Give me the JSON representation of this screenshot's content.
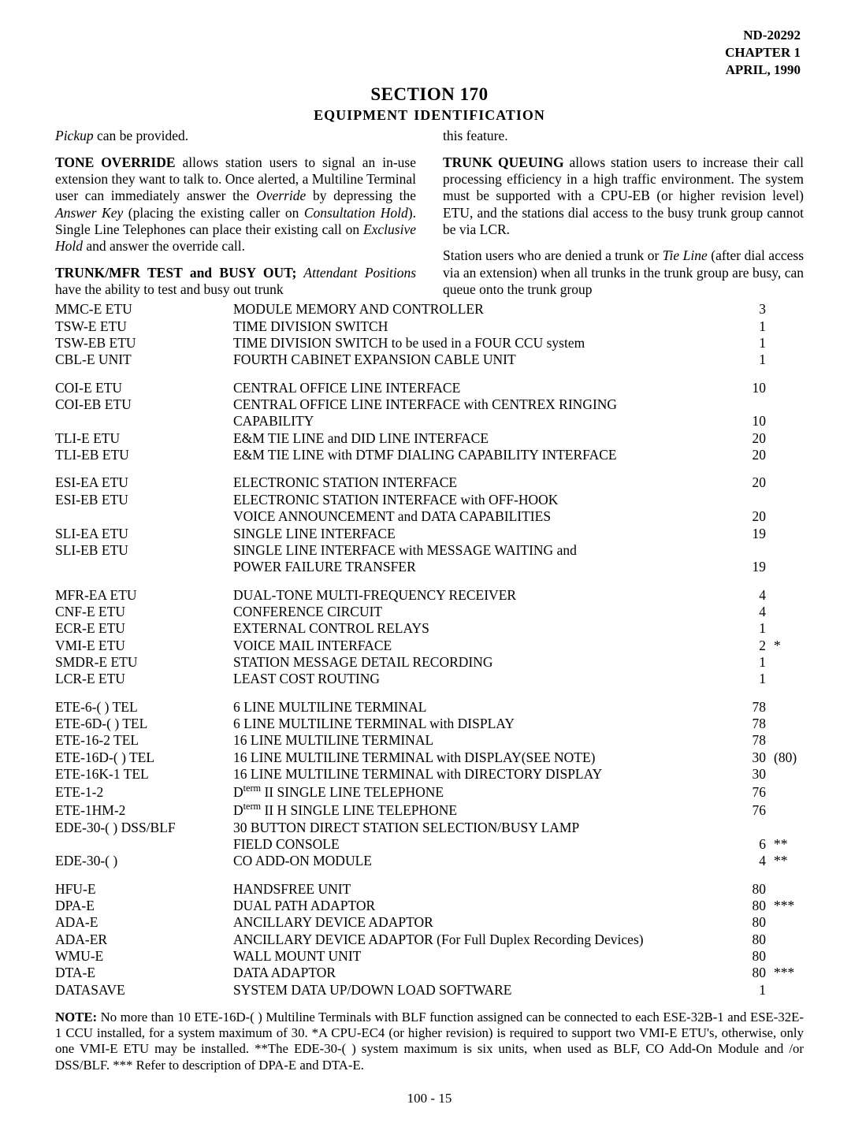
{
  "header": {
    "doc_no": "ND-20292",
    "chapter": "CHAPTER 1",
    "date": "APRIL, 1990"
  },
  "section": {
    "title": "SECTION 170",
    "subtitle": "EQUIPMENT IDENTIFICATION"
  },
  "left_col": {
    "p1_pre_i": "Pickup",
    "p1_rest": " can be provided.",
    "p2": "TONE OVERRIDE allows station users to signal an in-use extension they want to talk to. Once alerted, a Multiline Terminal user can immediately answer the Override by depressing the Answer Key (placing the existing caller on Consultation Hold). Single Line Telephones can place their existing call on Exclusive Hold and answer the override call.",
    "p3_lead": "TRUNK/MFR TEST and BUSY OUT;",
    "p3_i": " Attendant Positions",
    "p3_rest": " have the ability to test and busy out trunk"
  },
  "right_col": {
    "p1": "this feature.",
    "p2": "TRUNK QUEUING allows station users to increase their call processing efficiency in a high traffic environment. The system must be supported with a CPU-EB (or higher revision level) ETU, and the stations dial access to the busy trunk group cannot be via LCR.",
    "p3": "Station users who are denied a trunk or Tie Line (after dial access via an extension) when all trunks in the trunk group are busy, can queue onto the trunk group"
  },
  "equipment_groups": [
    [
      {
        "label": "MMC-E ETU",
        "desc": "MODULE MEMORY AND CONTROLLER",
        "qty": "3",
        "ast": ""
      },
      {
        "label": "TSW-E ETU",
        "desc": "TIME DIVISION SWITCH",
        "qty": "1",
        "ast": ""
      },
      {
        "label": "TSW-EB ETU",
        "desc": "TIME DIVISION SWITCH to be used in a FOUR CCU system",
        "qty": "1",
        "ast": ""
      },
      {
        "label": "CBL-E UNIT",
        "desc": "FOURTH CABINET EXPANSION CABLE UNIT",
        "qty": "1",
        "ast": ""
      }
    ],
    [
      {
        "label": "COI-E ETU",
        "desc": "CENTRAL OFFICE LINE INTERFACE",
        "qty": "10",
        "ast": ""
      },
      {
        "label": "COI-EB ETU",
        "desc": "CENTRAL OFFICE LINE INTERFACE with CENTREX RINGING",
        "qty": "",
        "ast": ""
      },
      {
        "label": "",
        "desc": "CAPABILITY",
        "qty": "10",
        "ast": ""
      },
      {
        "label": "TLI-E ETU",
        "desc": "E&M TIE LINE and DID LINE INTERFACE",
        "qty": "20",
        "ast": ""
      },
      {
        "label": "TLI-EB ETU",
        "desc": "E&M TIE LINE with DTMF DIALING CAPABILITY INTERFACE",
        "qty": "20",
        "ast": ""
      }
    ],
    [
      {
        "label": "ESI-EA ETU",
        "desc": "ELECTRONIC STATION INTERFACE",
        "qty": "20",
        "ast": ""
      },
      {
        "label": "ESI-EB ETU",
        "desc": "ELECTRONIC STATION INTERFACE with OFF-HOOK",
        "qty": "",
        "ast": ""
      },
      {
        "label": "",
        "desc": "VOICE ANNOUNCEMENT and DATA CAPABILITIES",
        "qty": "20",
        "ast": ""
      },
      {
        "label": "SLI-EA ETU",
        "desc": "SINGLE LINE INTERFACE",
        "qty": "19",
        "ast": ""
      },
      {
        "label": "SLI-EB ETU",
        "desc": "SINGLE LINE INTERFACE with MESSAGE WAITING and",
        "qty": "",
        "ast": ""
      },
      {
        "label": "",
        "desc": "POWER FAILURE TRANSFER",
        "qty": "19",
        "ast": ""
      }
    ],
    [
      {
        "label": "MFR-EA ETU",
        "desc": "DUAL-TONE MULTI-FREQUENCY RECEIVER",
        "qty": "4",
        "ast": ""
      },
      {
        "label": "CNF-E ETU",
        "desc": "CONFERENCE CIRCUIT",
        "qty": "4",
        "ast": ""
      },
      {
        "label": "ECR-E ETU",
        "desc": "EXTERNAL CONTROL RELAYS",
        "qty": "1",
        "ast": ""
      },
      {
        "label": "VMI-E ETU",
        "desc": "VOICE MAIL INTERFACE",
        "qty": "2",
        "ast": "*"
      },
      {
        "label": "SMDR-E ETU",
        "desc": "STATION MESSAGE DETAIL RECORDING",
        "qty": "1",
        "ast": ""
      },
      {
        "label": "LCR-E ETU",
        "desc": "LEAST COST ROUTING",
        "qty": "1",
        "ast": ""
      }
    ],
    [
      {
        "label": "ETE-6-( ) TEL",
        "desc": "6 LINE MULTILINE TERMINAL",
        "qty": "78",
        "ast": ""
      },
      {
        "label": "ETE-6D-( ) TEL",
        "desc": "6 LINE MULTILINE TERMINAL with DISPLAY",
        "qty": "78",
        "ast": ""
      },
      {
        "label": "ETE-16-2 TEL",
        "desc": "16 LINE MULTILINE TERMINAL",
        "qty": "78",
        "ast": ""
      },
      {
        "label": "ETE-16D-( ) TEL",
        "desc": "16 LINE MULTILINE TERMINAL with DISPLAY(SEE NOTE)",
        "qty": "30",
        "ast": "(80)"
      },
      {
        "label": "ETE-16K-1 TEL",
        "desc": "16 LINE MULTILINE TERMINAL with DIRECTORY DISPLAY",
        "qty": "30",
        "ast": ""
      },
      {
        "label": "ETE-1-2",
        "desc": "Dterm II SINGLE LINE TELEPHONE",
        "qty": "76",
        "ast": "",
        "dterm": true
      },
      {
        "label": "ETE-1HM-2",
        "desc": "Dterm II H SINGLE LINE TELEPHONE",
        "qty": "76",
        "ast": "",
        "dterm": true
      },
      {
        "label": "EDE-30-( ) DSS/BLF",
        "desc": "30 BUTTON DIRECT STATION SELECTION/BUSY LAMP",
        "qty": "",
        "ast": ""
      },
      {
        "label": "",
        "desc": "FIELD CONSOLE",
        "qty": "6",
        "ast": "**"
      },
      {
        "label": "EDE-30-( )",
        "desc": "CO ADD-ON MODULE",
        "qty": "4",
        "ast": "**"
      }
    ],
    [
      {
        "label": "HFU-E",
        "desc": "HANDSFREE UNIT",
        "qty": "80",
        "ast": ""
      },
      {
        "label": "DPA-E",
        "desc": "DUAL PATH ADAPTOR",
        "qty": "80",
        "ast": "***"
      },
      {
        "label": "ADA-E",
        "desc": "ANCILLARY DEVICE ADAPTOR",
        "qty": "80",
        "ast": ""
      },
      {
        "label": "ADA-ER",
        "desc": "ANCILLARY DEVICE ADAPTOR (For Full Duplex Recording Devices)",
        "qty": "80",
        "ast": ""
      },
      {
        "label": "WMU-E",
        "desc": "WALL MOUNT UNIT",
        "qty": "80",
        "ast": ""
      },
      {
        "label": "DTA-E",
        "desc": "DATA ADAPTOR",
        "qty": "80",
        "ast": "***"
      },
      {
        "label": "DATASAVE",
        "desc": "SYSTEM DATA UP/DOWN LOAD SOFTWARE",
        "qty": "1",
        "ast": ""
      }
    ]
  ],
  "note": {
    "lead": "NOTE:",
    "body": " No more than 10 ETE-16D-( ) Multiline Terminals with BLF function assigned can be connected to each ESE-32B-1 and ESE-32E-1 CCU installed, for a system maximum of 30. *A CPU-EC4 (or higher revision) is required to support two VMI-E ETU's, otherwise, only one VMI-E ETU may be installed. **The EDE-30-( ) system maximum is six units, when used as BLF, CO Add-On Module and /or DSS/BLF. *** Refer to description of DPA-E and DTA-E."
  },
  "footer": {
    "page": "100 - 15"
  }
}
